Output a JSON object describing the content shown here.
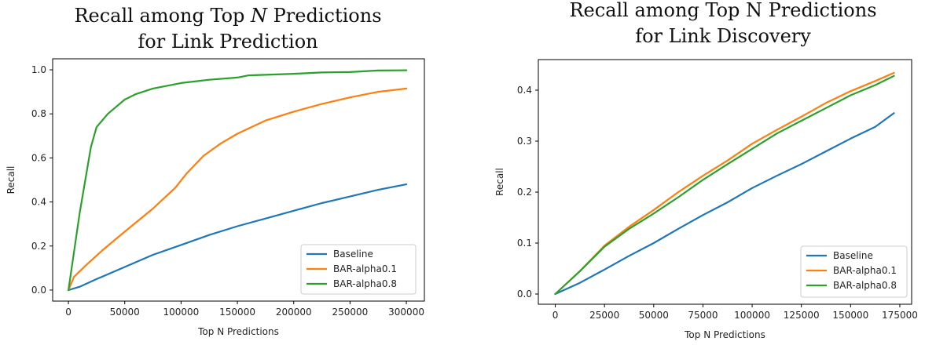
{
  "chart_data": [
    {
      "type": "line",
      "title_line1_pre": "Recall among Top ",
      "title_line1_em": "N",
      "title_line1_post": " Predictions",
      "title_line2": "for Link Prediction",
      "xlabel": "Top N Predictions",
      "ylabel": "Recall",
      "xlim": [
        -14000,
        316000
      ],
      "ylim": [
        -0.05,
        1.05
      ],
      "xticks": [
        0,
        50000,
        100000,
        150000,
        200000,
        250000,
        300000
      ],
      "yticks": [
        0.0,
        0.2,
        0.4,
        0.6,
        0.8,
        1.0
      ],
      "ytick_labels": [
        "0.0",
        "0.2",
        "0.4",
        "0.6",
        "0.8",
        "1.0"
      ],
      "legend_position": "bottom-right",
      "series": [
        {
          "name": "Baseline",
          "color": "#1f77b4",
          "x": [
            0,
            10000,
            25000,
            50000,
            75000,
            100000,
            125000,
            150000,
            175000,
            200000,
            225000,
            250000,
            275000,
            300000
          ],
          "y": [
            0.0,
            0.015,
            0.05,
            0.105,
            0.16,
            0.205,
            0.25,
            0.29,
            0.325,
            0.36,
            0.395,
            0.425,
            0.455,
            0.48
          ]
        },
        {
          "name": "BAR-alpha0.1",
          "color": "#ff7f0e",
          "x": [
            0,
            5000,
            15000,
            30000,
            50000,
            75000,
            95000,
            105000,
            120000,
            135000,
            150000,
            175000,
            200000,
            225000,
            250000,
            275000,
            300000
          ],
          "y": [
            0.0,
            0.06,
            0.11,
            0.18,
            0.265,
            0.37,
            0.465,
            0.53,
            0.61,
            0.665,
            0.71,
            0.77,
            0.81,
            0.845,
            0.875,
            0.9,
            0.915
          ]
        },
        {
          "name": "BAR-alpha0.8",
          "color": "#2ca02c",
          "x": [
            0,
            10000,
            20000,
            25000,
            35000,
            50000,
            60000,
            75000,
            100000,
            125000,
            150000,
            160000,
            200000,
            225000,
            250000,
            275000,
            300000
          ],
          "y": [
            0.0,
            0.35,
            0.65,
            0.74,
            0.8,
            0.865,
            0.89,
            0.915,
            0.94,
            0.955,
            0.965,
            0.975,
            0.982,
            0.988,
            0.99,
            0.997,
            0.998
          ]
        }
      ]
    },
    {
      "type": "line",
      "title_line1_pre": "Recall among Top N Predictions",
      "title_line1_em": "",
      "title_line1_post": "",
      "title_line2": "for Link Discovery",
      "xlabel": "Top N Predictions",
      "ylabel": "Recall",
      "xlim": [
        -8600,
        181000
      ],
      "ylim": [
        -0.02,
        0.46
      ],
      "xticks": [
        0,
        25000,
        50000,
        75000,
        100000,
        125000,
        150000,
        175000
      ],
      "yticks": [
        0.0,
        0.1,
        0.2,
        0.3,
        0.4
      ],
      "ytick_labels": [
        "0.0",
        "0.1",
        "0.2",
        "0.3",
        "0.4"
      ],
      "legend_position": "bottom-right",
      "series": [
        {
          "name": "Baseline",
          "color": "#1f77b4",
          "x": [
            0,
            12500,
            25000,
            37500,
            50000,
            62500,
            75000,
            87500,
            100000,
            112500,
            125000,
            137500,
            150000,
            162500,
            172000
          ],
          "y": [
            0.0,
            0.022,
            0.048,
            0.075,
            0.1,
            0.128,
            0.155,
            0.18,
            0.208,
            0.232,
            0.255,
            0.28,
            0.305,
            0.328,
            0.355
          ]
        },
        {
          "name": "BAR-alpha0.1",
          "color": "#ff7f0e",
          "x": [
            0,
            12500,
            25000,
            37500,
            50000,
            62500,
            75000,
            87500,
            100000,
            112500,
            125000,
            137500,
            150000,
            162500,
            172000
          ],
          "y": [
            0.0,
            0.045,
            0.095,
            0.132,
            0.165,
            0.2,
            0.232,
            0.262,
            0.295,
            0.322,
            0.348,
            0.375,
            0.398,
            0.418,
            0.434
          ]
        },
        {
          "name": "BAR-alpha0.8",
          "color": "#2ca02c",
          "x": [
            0,
            12500,
            25000,
            37500,
            50000,
            62500,
            75000,
            87500,
            100000,
            112500,
            125000,
            137500,
            150000,
            162500,
            172000
          ],
          "y": [
            0.0,
            0.045,
            0.093,
            0.128,
            0.158,
            0.19,
            0.224,
            0.255,
            0.285,
            0.315,
            0.34,
            0.365,
            0.39,
            0.41,
            0.428
          ]
        }
      ]
    }
  ]
}
